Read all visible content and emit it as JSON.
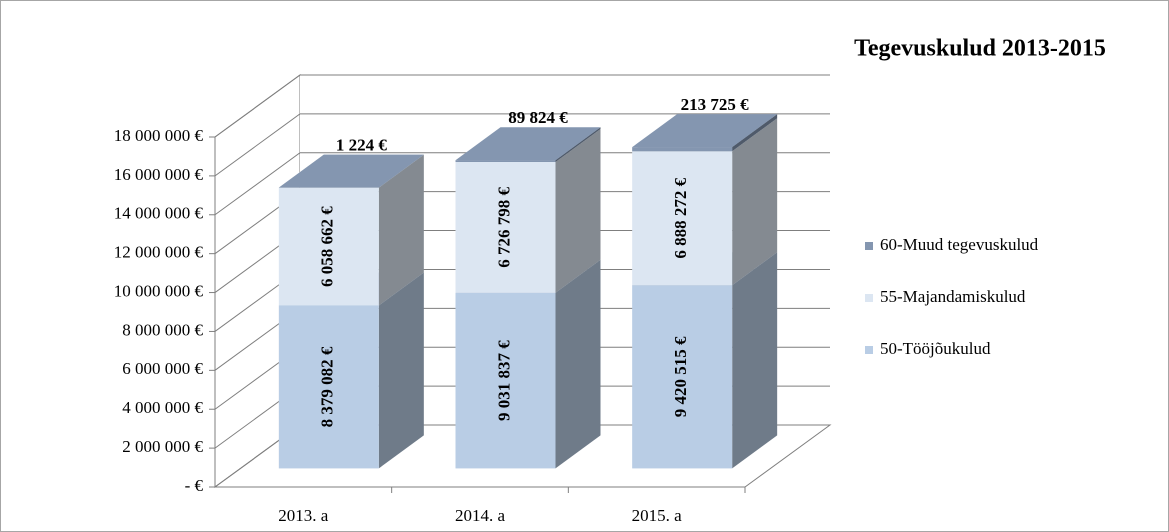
{
  "chart_data": {
    "type": "bar3d-stacked",
    "title": "Tegevuskulud 2013-2015",
    "categories": [
      "2013. a",
      "2014. a",
      "2015. a"
    ],
    "series": [
      {
        "name": "50-Tööjõukulud",
        "color": "#b9cde5",
        "values": [
          8379082,
          9031837,
          9420515
        ],
        "value_labels": [
          "8 379 082 €",
          "9 031 837 €",
          "9 420 515 €"
        ]
      },
      {
        "name": "55-Majandamiskulud",
        "color": "#dce6f2",
        "values": [
          6058662,
          6726798,
          6888272
        ],
        "value_labels": [
          "6 058 662 €",
          "6 726 798 €",
          "6 888 272 €"
        ]
      },
      {
        "name": "60-Muud tegevuskulud",
        "color": "#8496b0",
        "values": [
          1224,
          89824,
          213725
        ],
        "value_labels": [
          "1 224 €",
          "89 824 €",
          "213 725 €"
        ]
      }
    ],
    "ylim": [
      0,
      18000000
    ],
    "yticks": [
      {
        "value": 0,
        "label": "-  €"
      },
      {
        "value": 2000000,
        "label": "2 000 000 €"
      },
      {
        "value": 4000000,
        "label": "4 000 000 €"
      },
      {
        "value": 6000000,
        "label": "6 000 000 €"
      },
      {
        "value": 8000000,
        "label": "8 000 000 €"
      },
      {
        "value": 10000000,
        "label": "10 000 000 €"
      },
      {
        "value": 12000000,
        "label": "12 000 000 €"
      },
      {
        "value": 14000000,
        "label": "14 000 000 €"
      },
      {
        "value": 16000000,
        "label": "16 000 000 €"
      },
      {
        "value": 18000000,
        "label": "18 000 000 €"
      }
    ],
    "grid": true,
    "legend": "right"
  }
}
